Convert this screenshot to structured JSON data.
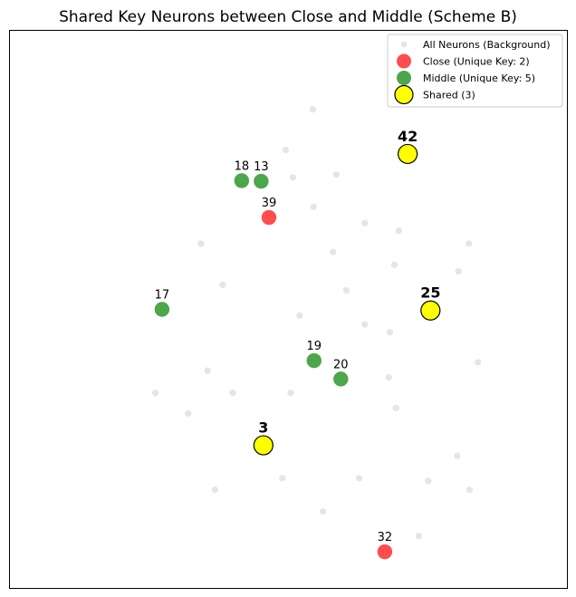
{
  "chart_data": {
    "type": "scatter",
    "title": "Shared Key Neurons between Close and Middle (Scheme B)",
    "xlabel": "",
    "ylabel": "",
    "axes_visible": false,
    "grid": false,
    "legend_position": "top-right",
    "xlim": [
      0,
      1
    ],
    "ylim": [
      0,
      1
    ],
    "series": [
      {
        "name": "All Neurons (Background)",
        "color": "#d3d3d3",
        "points": [
          {
            "x": 0.544,
            "y": 0.859
          },
          {
            "x": 0.495,
            "y": 0.786
          },
          {
            "x": 0.508,
            "y": 0.737
          },
          {
            "x": 0.586,
            "y": 0.742
          },
          {
            "x": 0.545,
            "y": 0.684
          },
          {
            "x": 0.637,
            "y": 0.655
          },
          {
            "x": 0.698,
            "y": 0.641
          },
          {
            "x": 0.343,
            "y": 0.618
          },
          {
            "x": 0.58,
            "y": 0.603
          },
          {
            "x": 0.824,
            "y": 0.618
          },
          {
            "x": 0.69,
            "y": 0.58
          },
          {
            "x": 0.805,
            "y": 0.568
          },
          {
            "x": 0.382,
            "y": 0.544
          },
          {
            "x": 0.604,
            "y": 0.534
          },
          {
            "x": 0.52,
            "y": 0.489
          },
          {
            "x": 0.637,
            "y": 0.473
          },
          {
            "x": 0.682,
            "y": 0.459
          },
          {
            "x": 0.84,
            "y": 0.405
          },
          {
            "x": 0.355,
            "y": 0.39
          },
          {
            "x": 0.68,
            "y": 0.378
          },
          {
            "x": 0.261,
            "y": 0.35
          },
          {
            "x": 0.4,
            "y": 0.35
          },
          {
            "x": 0.504,
            "y": 0.35
          },
          {
            "x": 0.693,
            "y": 0.323
          },
          {
            "x": 0.32,
            "y": 0.313
          },
          {
            "x": 0.803,
            "y": 0.237
          },
          {
            "x": 0.489,
            "y": 0.197
          },
          {
            "x": 0.627,
            "y": 0.197
          },
          {
            "x": 0.751,
            "y": 0.192
          },
          {
            "x": 0.368,
            "y": 0.176
          },
          {
            "x": 0.825,
            "y": 0.176
          },
          {
            "x": 0.562,
            "y": 0.137
          },
          {
            "x": 0.734,
            "y": 0.093
          }
        ]
      },
      {
        "name": "Close (Unique Key: 2)",
        "color": "#ff0000",
        "points": [
          {
            "id": "39",
            "x": 0.465,
            "y": 0.665
          },
          {
            "id": "32",
            "x": 0.673,
            "y": 0.065
          }
        ]
      },
      {
        "name": "Middle (Unique Key: 5)",
        "color": "#008000",
        "points": [
          {
            "id": "18",
            "x": 0.416,
            "y": 0.731
          },
          {
            "id": "13",
            "x": 0.451,
            "y": 0.73
          },
          {
            "id": "17",
            "x": 0.273,
            "y": 0.5
          },
          {
            "id": "19",
            "x": 0.546,
            "y": 0.408
          },
          {
            "id": "20",
            "x": 0.594,
            "y": 0.375
          }
        ]
      },
      {
        "name": "Shared (3)",
        "color": "#ffff00",
        "edge_color": "#000000",
        "points": [
          {
            "id": "42",
            "x": 0.714,
            "y": 0.779
          },
          {
            "id": "25",
            "x": 0.755,
            "y": 0.498
          },
          {
            "id": "3",
            "x": 0.455,
            "y": 0.256
          }
        ]
      }
    ]
  }
}
